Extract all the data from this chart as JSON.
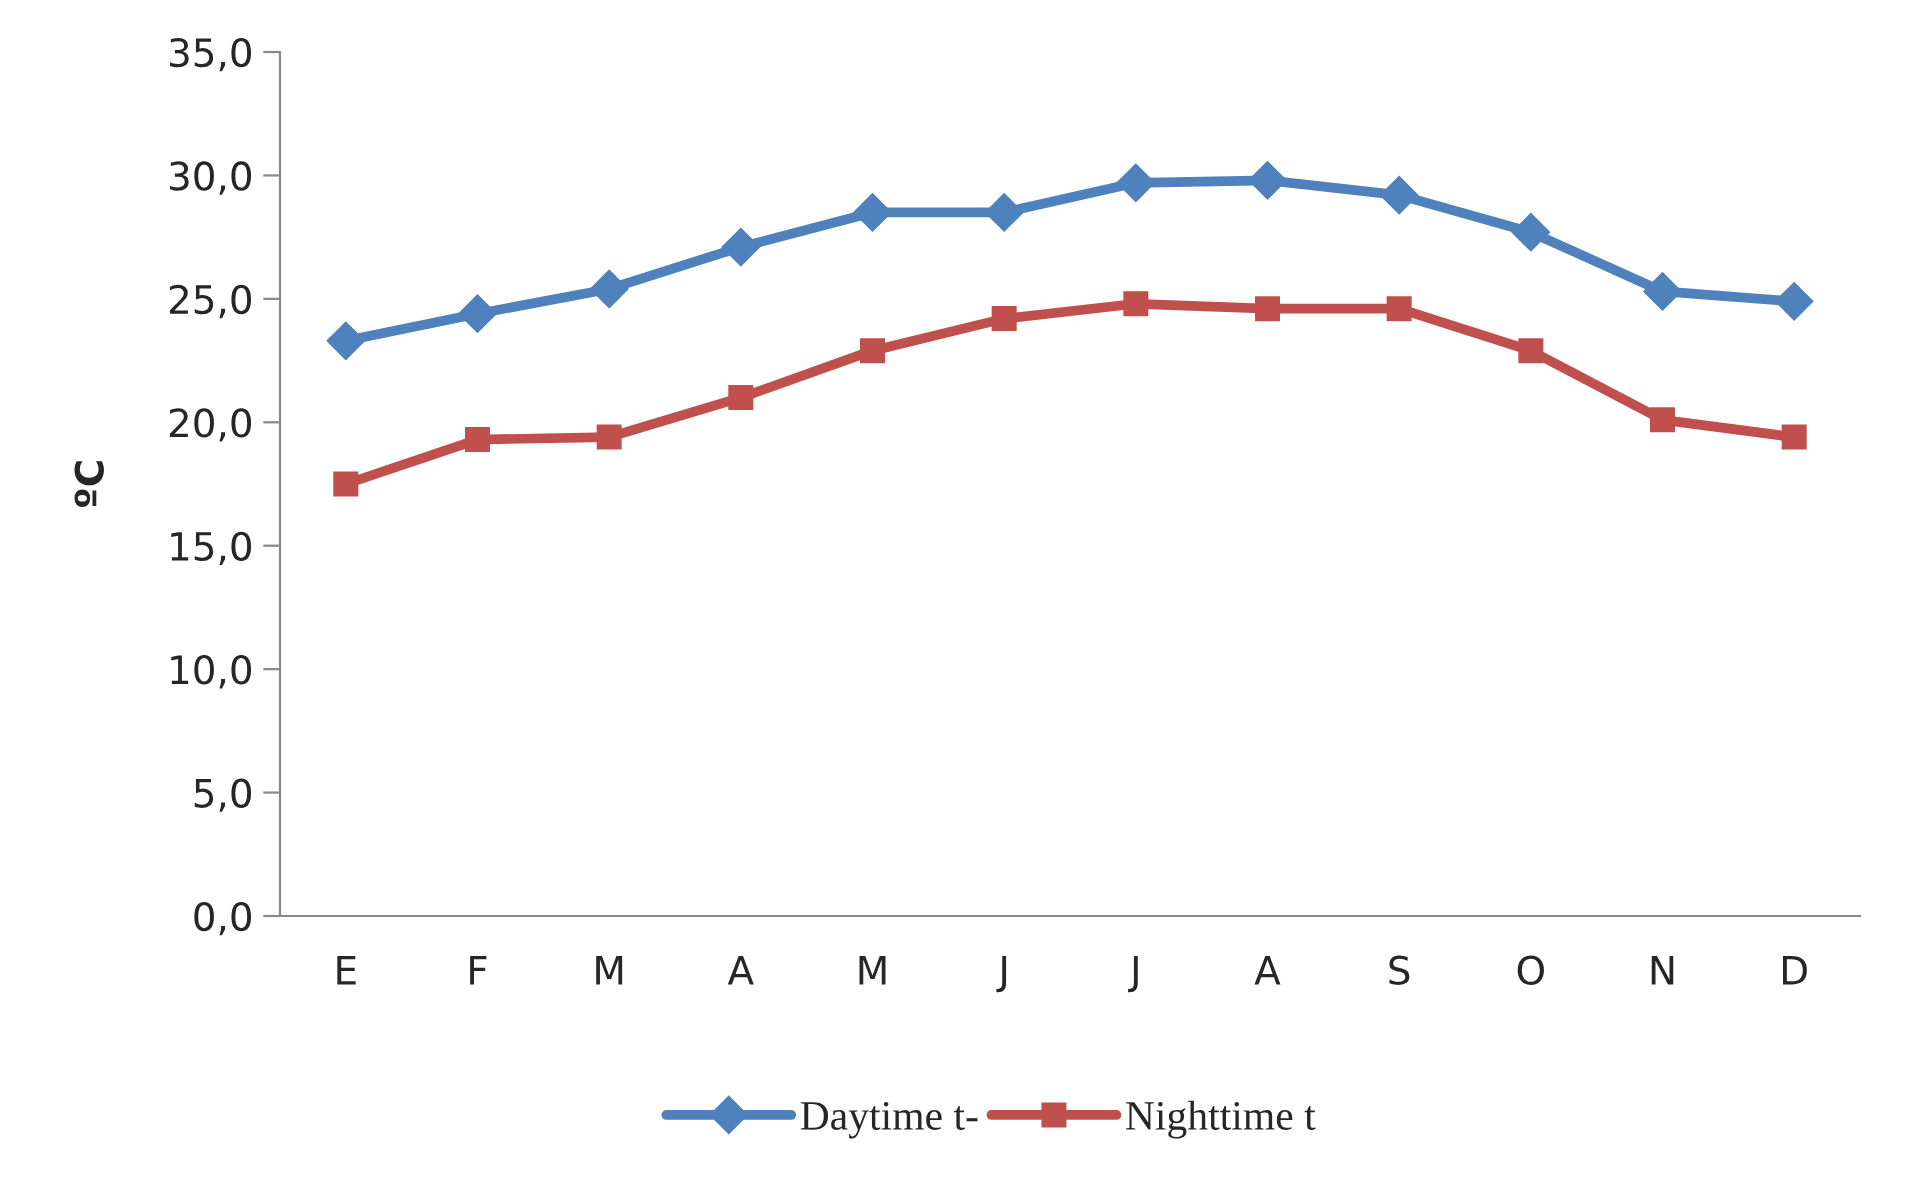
{
  "chart_data": {
    "type": "line",
    "ylabel": "ºC",
    "categories": [
      "E",
      "F",
      "M",
      "A",
      "M",
      "J",
      "J",
      "A",
      "S",
      "O",
      "N",
      "D"
    ],
    "series": [
      {
        "name": "Daytime t-",
        "color": "#4f81bd",
        "marker": "diamond",
        "values": [
          23.3,
          24.4,
          25.4,
          27.1,
          28.5,
          28.5,
          29.7,
          29.8,
          29.2,
          27.7,
          25.3,
          24.9
        ]
      },
      {
        "name": "Nighttime t",
        "color": "#c0504d",
        "marker": "square",
        "values": [
          17.5,
          19.3,
          19.4,
          21.0,
          22.9,
          24.2,
          24.8,
          24.6,
          24.6,
          22.9,
          20.1,
          19.4
        ]
      }
    ],
    "ylim": [
      0,
      35
    ],
    "yticks": [
      {
        "value": 0,
        "label": "0,0"
      },
      {
        "value": 5,
        "label": "5,0"
      },
      {
        "value": 10,
        "label": "10,0"
      },
      {
        "value": 15,
        "label": "15,0"
      },
      {
        "value": 20,
        "label": "20,0"
      },
      {
        "value": 25,
        "label": "25,0"
      },
      {
        "value": 30,
        "label": "30,0"
      },
      {
        "value": 35,
        "label": "35,0"
      }
    ],
    "grid": false,
    "legend": "bottom",
    "line_style": "solid"
  }
}
